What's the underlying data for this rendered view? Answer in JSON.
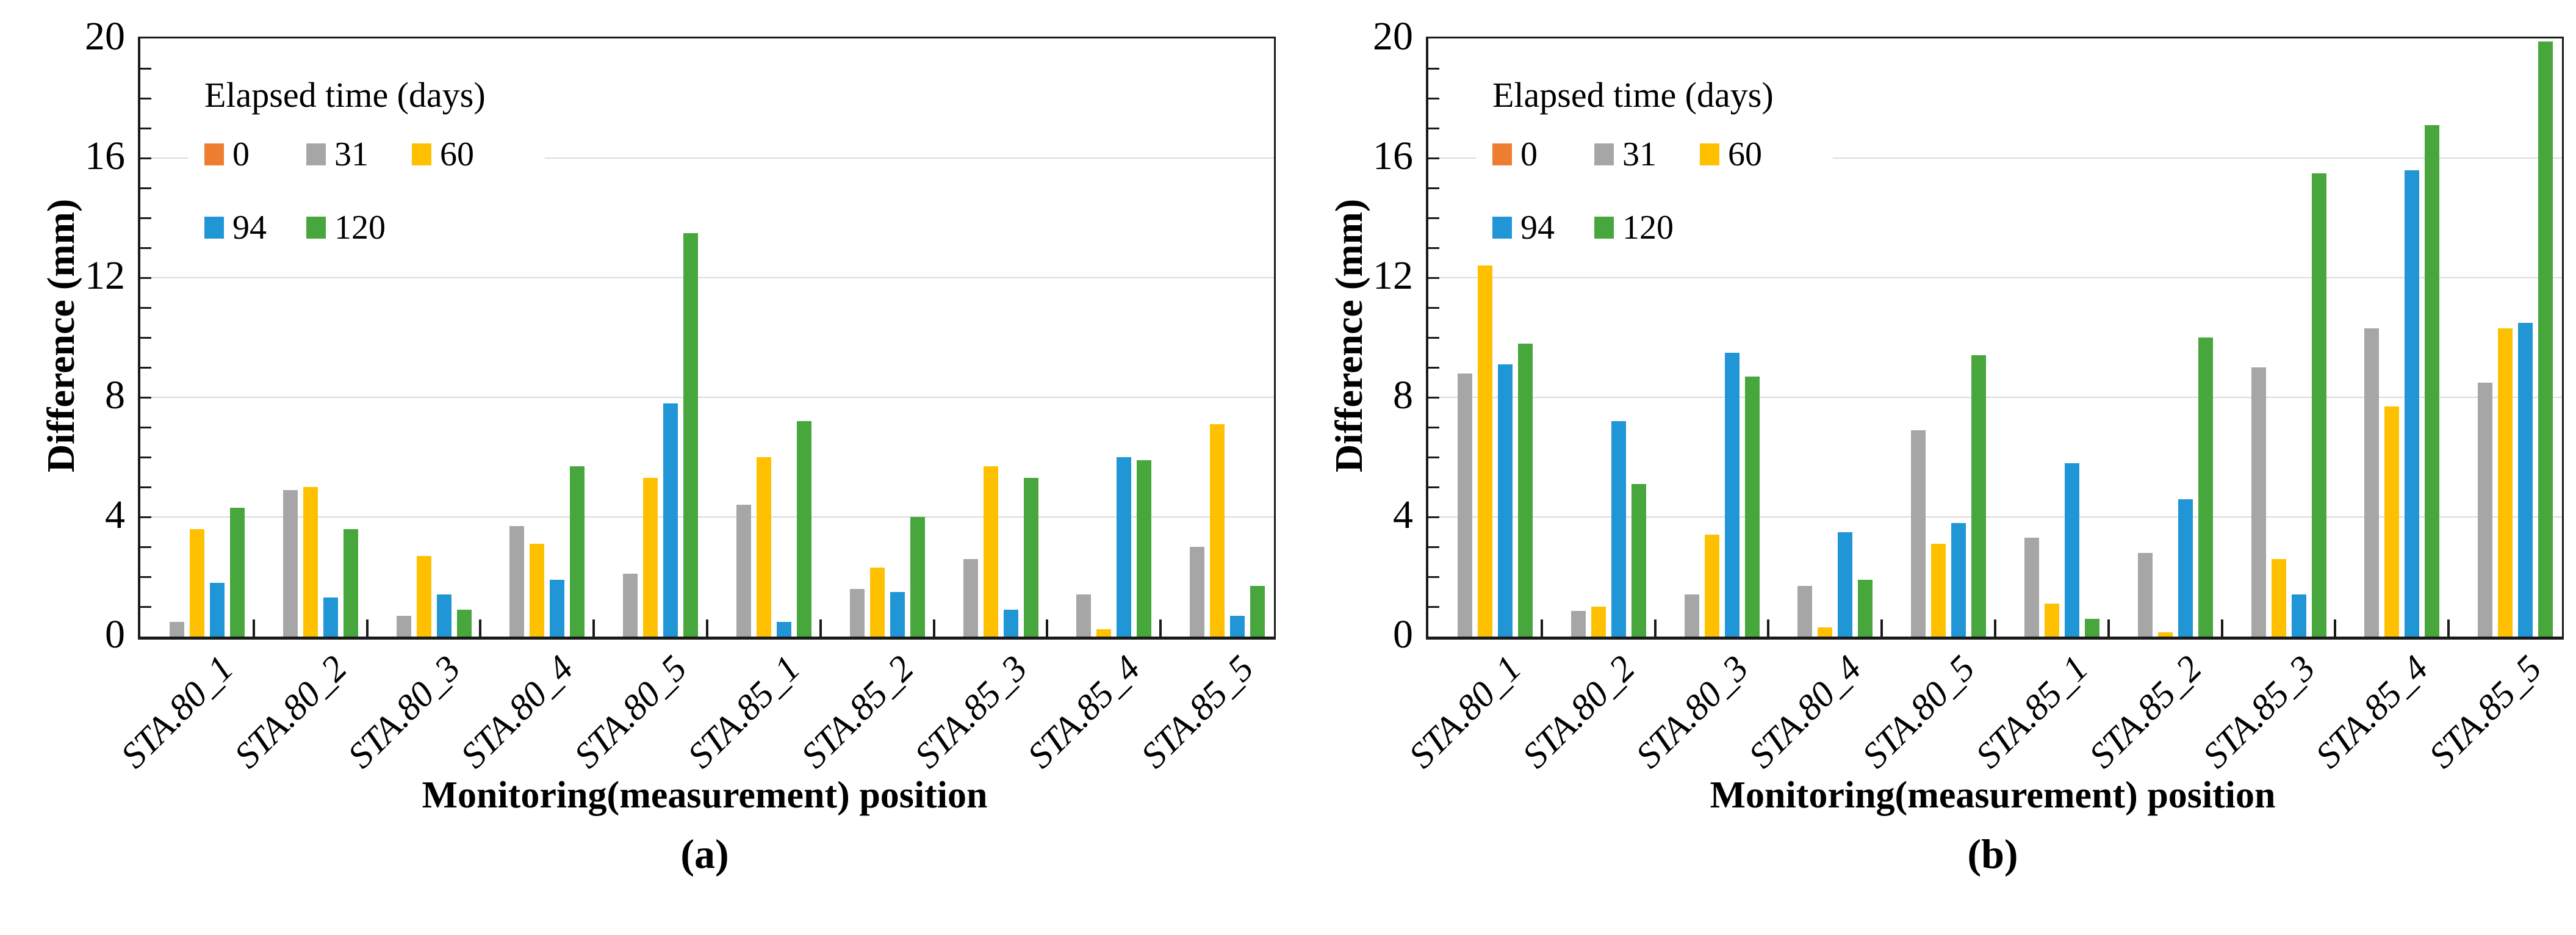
{
  "figure": {
    "ylabel": "Difference (mm)",
    "xlabel": "Monitoring(measurement) position",
    "legend_title": "Elapsed time (days)",
    "panel_a_label": "(a)",
    "panel_b_label": "(b)",
    "colors": {
      "series_0": "#ED7D31",
      "series_31": "#A6A6A6",
      "series_60": "#FFC000",
      "series_94": "#2196D6",
      "series_120": "#47A63C",
      "gridline": "#DCDCDC",
      "axis": "#1A1A1A"
    }
  },
  "chart_data": [
    {
      "type": "bar",
      "panel_label": "(a)",
      "xlabel": "Monitoring(measurement) position",
      "ylabel": "Difference (mm)",
      "ylim": [
        0,
        20
      ],
      "y_ticks": [
        0,
        4,
        8,
        12,
        16,
        20
      ],
      "grid": true,
      "legend_title": "Elapsed time (days)",
      "legend_position": "top-left-inside",
      "categories": [
        "STA.80_1",
        "STA.80_2",
        "STA.80_3",
        "STA.80_4",
        "STA.80_5",
        "STA.85_1",
        "STA.85_2",
        "STA.85_3",
        "STA.85_4",
        "STA.85_5"
      ],
      "series": [
        {
          "name": "0",
          "color": "#ED7D31",
          "values": [
            0,
            0,
            0,
            0,
            0,
            0,
            0,
            0,
            0,
            0
          ]
        },
        {
          "name": "31",
          "color": "#A6A6A6",
          "values": [
            0.5,
            4.9,
            0.7,
            3.7,
            2.1,
            4.4,
            1.6,
            2.6,
            1.4,
            3.0
          ]
        },
        {
          "name": "60",
          "color": "#FFC000",
          "values": [
            3.6,
            5.0,
            2.7,
            3.1,
            5.3,
            6.0,
            2.3,
            5.7,
            0.25,
            7.1
          ]
        },
        {
          "name": "94",
          "color": "#2196D6",
          "values": [
            1.8,
            1.3,
            1.4,
            1.9,
            7.8,
            0.5,
            1.5,
            0.9,
            6.0,
            0.7
          ]
        },
        {
          "name": "120",
          "color": "#47A63C",
          "values": [
            4.3,
            3.6,
            0.9,
            5.7,
            13.5,
            7.2,
            4.0,
            5.3,
            5.9,
            1.7
          ]
        }
      ]
    },
    {
      "type": "bar",
      "panel_label": "(b)",
      "xlabel": "Monitoring(measurement) position",
      "ylabel": "Difference (mm)",
      "ylim": [
        0,
        20
      ],
      "y_ticks": [
        0,
        4,
        8,
        12,
        16,
        20
      ],
      "grid": true,
      "legend_title": "Elapsed time (days)",
      "legend_position": "top-left-inside",
      "categories": [
        "STA.80_1",
        "STA.80_2",
        "STA.80_3",
        "STA.80_4",
        "STA.80_5",
        "STA.85_1",
        "STA.85_2",
        "STA.85_3",
        "STA.85_4",
        "STA.85_5"
      ],
      "series": [
        {
          "name": "0",
          "color": "#ED7D31",
          "values": [
            0,
            0,
            0,
            0,
            0,
            0,
            0,
            0,
            0,
            0
          ]
        },
        {
          "name": "31",
          "color": "#A6A6A6",
          "values": [
            8.8,
            0.85,
            1.4,
            1.7,
            6.9,
            3.3,
            2.8,
            9.0,
            10.3,
            8.5
          ]
        },
        {
          "name": "60",
          "color": "#FFC000",
          "values": [
            12.4,
            1.0,
            3.4,
            0.3,
            3.1,
            1.1,
            0.15,
            2.6,
            7.7,
            10.3
          ]
        },
        {
          "name": "94",
          "color": "#2196D6",
          "values": [
            9.1,
            7.2,
            9.5,
            3.5,
            3.8,
            5.8,
            4.6,
            1.4,
            15.6,
            10.5
          ]
        },
        {
          "name": "120",
          "color": "#47A63C",
          "values": [
            9.8,
            5.1,
            8.7,
            1.9,
            9.4,
            0.6,
            10.0,
            15.5,
            17.1,
            19.9
          ]
        }
      ]
    }
  ]
}
